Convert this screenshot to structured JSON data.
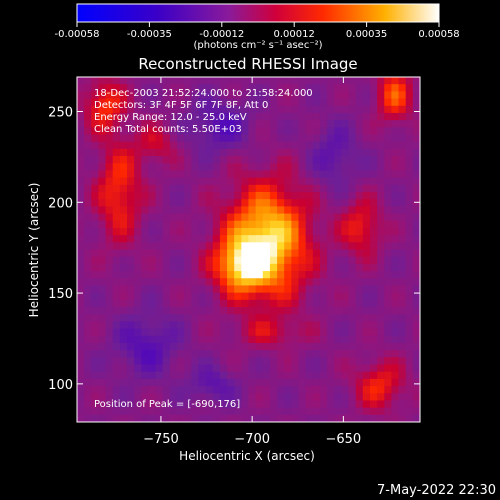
{
  "chart_data": {
    "type": "heatmap",
    "title": "Reconstructed RHESSI Image",
    "xlabel": "Heliocentric X (arcsec)",
    "ylabel": "Heliocentric Y (arcsec)",
    "colorbar": {
      "ticks": [
        "-0.00058",
        "-0.00035",
        "-0.00012",
        "0.00012",
        "0.00035",
        "0.00058"
      ],
      "range": [
        -0.00058,
        0.00058
      ],
      "unit_label": "(photons cm⁻² s⁻¹ asec⁻²)"
    },
    "x_ticks": [
      "−750",
      "−700",
      "−650"
    ],
    "x_tick_values": [
      -750,
      -700,
      -650
    ],
    "y_ticks": [
      "100",
      "150",
      "200",
      "250"
    ],
    "y_tick_values": [
      100,
      150,
      200,
      250
    ],
    "xlim": [
      -796,
      -608
    ],
    "ylim": [
      79,
      269
    ],
    "info_lines": [
      "18-Dec-2003 21:52:24.000 to 21:58:24.000",
      "Detectors: 3F 4F 5F 6F 7F 8F, Att 0",
      "Energy Range: 12.0 - 25.0 keV",
      "Clean     Total counts: 5.50E+03"
    ],
    "peak_text": "Position of Peak = [-690,176]",
    "peak": [
      -690,
      176
    ],
    "blobs": [
      {
        "x": -692,
        "y": 178,
        "amp": 1.0,
        "sx": 16,
        "sy": 22
      },
      {
        "x": -707,
        "y": 165,
        "amp": 0.6,
        "sx": 10,
        "sy": 10
      },
      {
        "x": -773,
        "y": 206,
        "amp": 0.5,
        "sx": 9,
        "sy": 20
      },
      {
        "x": -781,
        "y": 254,
        "amp": 0.5,
        "sx": 8,
        "sy": 10
      },
      {
        "x": -640,
        "y": 186,
        "amp": 0.45,
        "sx": 8,
        "sy": 11
      },
      {
        "x": -622,
        "y": 259,
        "amp": 0.55,
        "sx": 7,
        "sy": 11
      },
      {
        "x": -630,
        "y": 99,
        "amp": 0.45,
        "sx": 10,
        "sy": 10
      },
      {
        "x": -752,
        "y": 232,
        "amp": 0.3,
        "sx": 8,
        "sy": 8
      },
      {
        "x": -690,
        "y": 128,
        "amp": 0.25,
        "sx": 14,
        "sy": 6
      },
      {
        "x": -718,
        "y": 242,
        "amp": -0.35,
        "sx": 12,
        "sy": 10
      },
      {
        "x": -758,
        "y": 121,
        "amp": -0.35,
        "sx": 12,
        "sy": 12
      },
      {
        "x": -655,
        "y": 225,
        "amp": -0.3,
        "sx": 9,
        "sy": 12
      },
      {
        "x": -722,
        "y": 99,
        "amp": -0.3,
        "sx": 9,
        "sy": 7
      }
    ]
  },
  "footer": {
    "timestamp": "7-May-2022 22:30"
  }
}
